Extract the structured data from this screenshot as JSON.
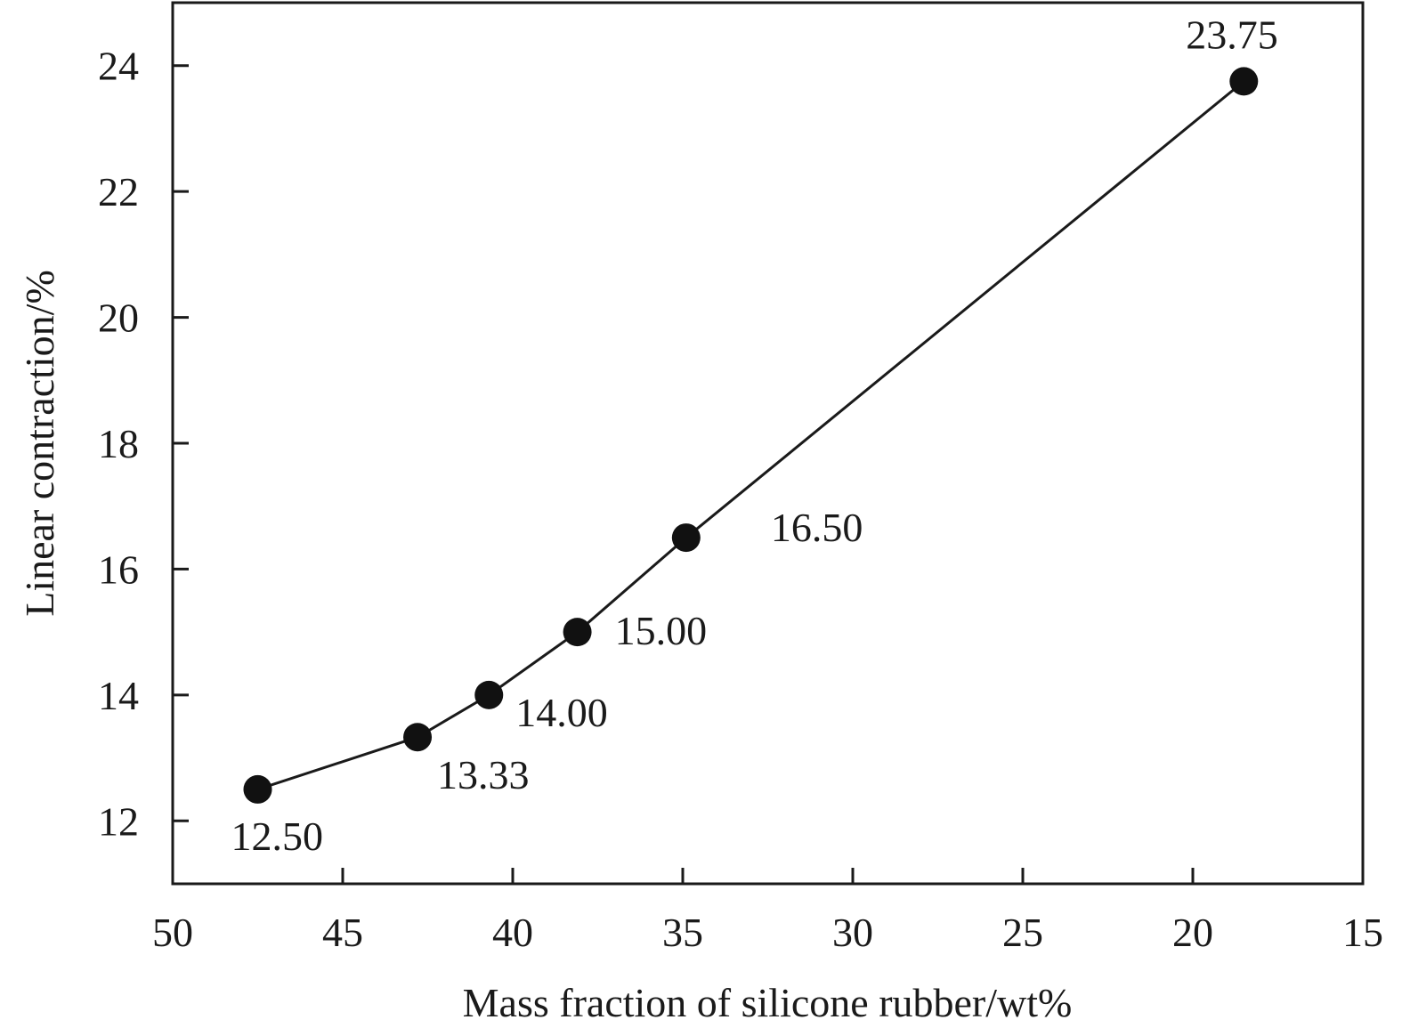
{
  "chart_data": {
    "type": "line",
    "title": "",
    "xlabel": "Mass fraction of silicone rubber/wt%",
    "ylabel": "Linear contraction/%",
    "xlim": [
      50,
      15
    ],
    "ylim": [
      11,
      25
    ],
    "x_reversed": true,
    "xticks": [
      50,
      45,
      40,
      35,
      30,
      25,
      20,
      15
    ],
    "yticks": [
      12,
      14,
      16,
      18,
      20,
      22,
      24
    ],
    "grid": false,
    "legend": "none",
    "line_color": "#1a1a1a",
    "marker_color": "#111111",
    "series": [
      {
        "x": [
          47.5,
          42.8,
          40.7,
          38.1,
          34.9,
          18.5
        ],
        "y": [
          12.5,
          13.33,
          14.0,
          15.0,
          16.5,
          23.75
        ],
        "labels": [
          "12.50",
          "13.33",
          "14.00",
          "15.00",
          "16.50",
          "23.75"
        ]
      }
    ]
  }
}
